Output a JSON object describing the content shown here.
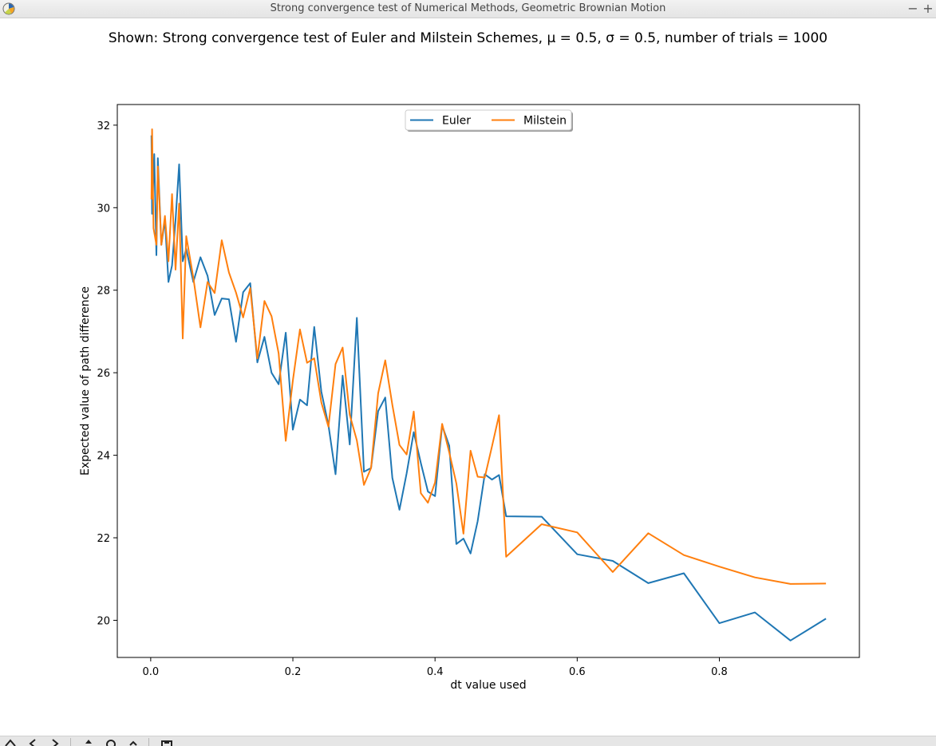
{
  "window": {
    "title": "Strong convergence test of Numerical Methods, Geometric Brownian Motion"
  },
  "colors": {
    "euler": "#1f77b4",
    "milstein": "#ff7f0e"
  },
  "toolbar": {
    "buttons": [
      {
        "name": "home-icon"
      },
      {
        "name": "back-icon"
      },
      {
        "name": "forward-icon"
      },
      {
        "name": "pan-icon"
      },
      {
        "name": "zoom-icon"
      },
      {
        "name": "subplots-icon"
      },
      {
        "name": "save-icon"
      }
    ]
  },
  "chart_data": {
    "type": "line",
    "title": "Shown: Strong convergence test of Euler and Milstein Schemes, μ = 0.5, σ = 0.5, number of trials = 1000",
    "xlabel": "dt value used",
    "ylabel": "Expected value of path difference",
    "xlim": [
      -0.047,
      0.997
    ],
    "ylim": [
      19.1,
      32.5
    ],
    "xticks": [
      0.0,
      0.2,
      0.4,
      0.6,
      0.8
    ],
    "xtick_labels": [
      "0.0",
      "0.2",
      "0.4",
      "0.6",
      "0.8"
    ],
    "yticks": [
      20,
      22,
      24,
      26,
      28,
      30,
      32
    ],
    "ytick_labels": [
      "20",
      "22",
      "24",
      "26",
      "28",
      "30",
      "32"
    ],
    "grid": false,
    "legend": {
      "position": "upper center",
      "entries": [
        "Euler",
        "Milstein"
      ]
    },
    "series": [
      {
        "name": "Euler",
        "x": [
          0.001,
          0.002,
          0.005,
          0.008,
          0.01,
          0.015,
          0.02,
          0.025,
          0.03,
          0.035,
          0.04,
          0.045,
          0.05,
          0.06,
          0.07,
          0.08,
          0.09,
          0.1,
          0.11,
          0.12,
          0.13,
          0.14,
          0.15,
          0.16,
          0.17,
          0.18,
          0.19,
          0.2,
          0.21,
          0.22,
          0.23,
          0.24,
          0.25,
          0.26,
          0.27,
          0.28,
          0.29,
          0.3,
          0.31,
          0.32,
          0.33,
          0.34,
          0.35,
          0.36,
          0.37,
          0.38,
          0.39,
          0.4,
          0.41,
          0.42,
          0.43,
          0.44,
          0.45,
          0.46,
          0.47,
          0.48,
          0.49,
          0.5,
          0.55,
          0.6,
          0.65,
          0.7,
          0.75,
          0.8,
          0.85,
          0.9,
          0.95
        ],
        "y": [
          31.75,
          29.85,
          31.3,
          28.85,
          31.2,
          29.1,
          29.7,
          28.2,
          28.6,
          29.7,
          31.05,
          28.7,
          29.0,
          28.2,
          28.8,
          28.35,
          27.4,
          27.8,
          27.78,
          26.75,
          27.95,
          28.17,
          26.25,
          26.87,
          26.0,
          25.72,
          26.97,
          24.62,
          25.35,
          25.21,
          27.11,
          25.54,
          24.73,
          23.54,
          25.93,
          24.26,
          27.33,
          23.6,
          23.69,
          25.07,
          25.4,
          23.45,
          22.68,
          23.56,
          24.56,
          23.81,
          23.12,
          23.01,
          24.72,
          24.23,
          21.85,
          21.98,
          21.62,
          22.4,
          23.54,
          23.41,
          23.52,
          22.52,
          22.51,
          21.6,
          21.44,
          20.9,
          21.14,
          19.93,
          20.19,
          19.51,
          20.04
        ]
      },
      {
        "name": "Milstein",
        "x": [
          0.001,
          0.002,
          0.004,
          0.006,
          0.008,
          0.01,
          0.015,
          0.02,
          0.025,
          0.03,
          0.035,
          0.04,
          0.045,
          0.05,
          0.06,
          0.07,
          0.08,
          0.09,
          0.1,
          0.11,
          0.12,
          0.13,
          0.14,
          0.15,
          0.16,
          0.17,
          0.18,
          0.19,
          0.2,
          0.21,
          0.22,
          0.23,
          0.24,
          0.25,
          0.26,
          0.27,
          0.28,
          0.29,
          0.3,
          0.31,
          0.32,
          0.33,
          0.34,
          0.35,
          0.36,
          0.37,
          0.38,
          0.39,
          0.4,
          0.41,
          0.42,
          0.43,
          0.44,
          0.45,
          0.46,
          0.47,
          0.48,
          0.49,
          0.5,
          0.55,
          0.6,
          0.65,
          0.7,
          0.75,
          0.8,
          0.85,
          0.9,
          0.95
        ],
        "y": [
          30.2,
          31.9,
          29.5,
          29.3,
          29.1,
          31.0,
          29.1,
          29.8,
          28.7,
          30.33,
          28.5,
          30.1,
          26.83,
          29.31,
          28.3,
          27.1,
          28.2,
          27.93,
          29.21,
          28.43,
          27.94,
          27.34,
          28.05,
          26.35,
          27.74,
          27.37,
          26.47,
          24.35,
          25.81,
          27.05,
          26.24,
          26.35,
          25.28,
          24.69,
          26.21,
          26.61,
          24.98,
          24.36,
          23.28,
          23.69,
          25.5,
          26.3,
          25.22,
          24.25,
          24.02,
          25.06,
          23.08,
          22.85,
          23.34,
          24.76,
          24.07,
          23.32,
          22.1,
          24.11,
          23.48,
          23.46,
          24.21,
          24.97,
          21.54,
          22.33,
          22.13,
          21.17,
          22.11,
          21.58,
          21.3,
          21.04,
          20.88,
          20.89
        ]
      }
    ]
  }
}
